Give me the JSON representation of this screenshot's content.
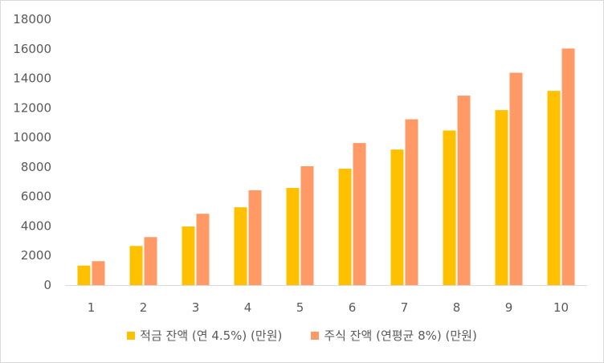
{
  "chart_data": {
    "type": "bar",
    "categories": [
      "1",
      "2",
      "3",
      "4",
      "5",
      "6",
      "7",
      "8",
      "9",
      "10"
    ],
    "series": [
      {
        "name": "적금 잔액 (연 4.5%) (만원)",
        "color": "#FFC000",
        "values": [
          1320,
          2650,
          3970,
          5270,
          6580,
          7880,
          9180,
          10470,
          11850,
          13150
        ]
      },
      {
        "name": "주식 잔액 (연평균 8%) (만원)",
        "color": "#FF9966",
        "values": [
          1620,
          3250,
          4830,
          6420,
          8050,
          9620,
          11230,
          12830,
          14380,
          16020
        ]
      }
    ],
    "ylim": [
      0,
      18000
    ],
    "yticks": [
      0,
      2000,
      4000,
      6000,
      8000,
      10000,
      12000,
      14000,
      16000,
      18000
    ],
    "grid": false,
    "legend_position": "bottom"
  }
}
